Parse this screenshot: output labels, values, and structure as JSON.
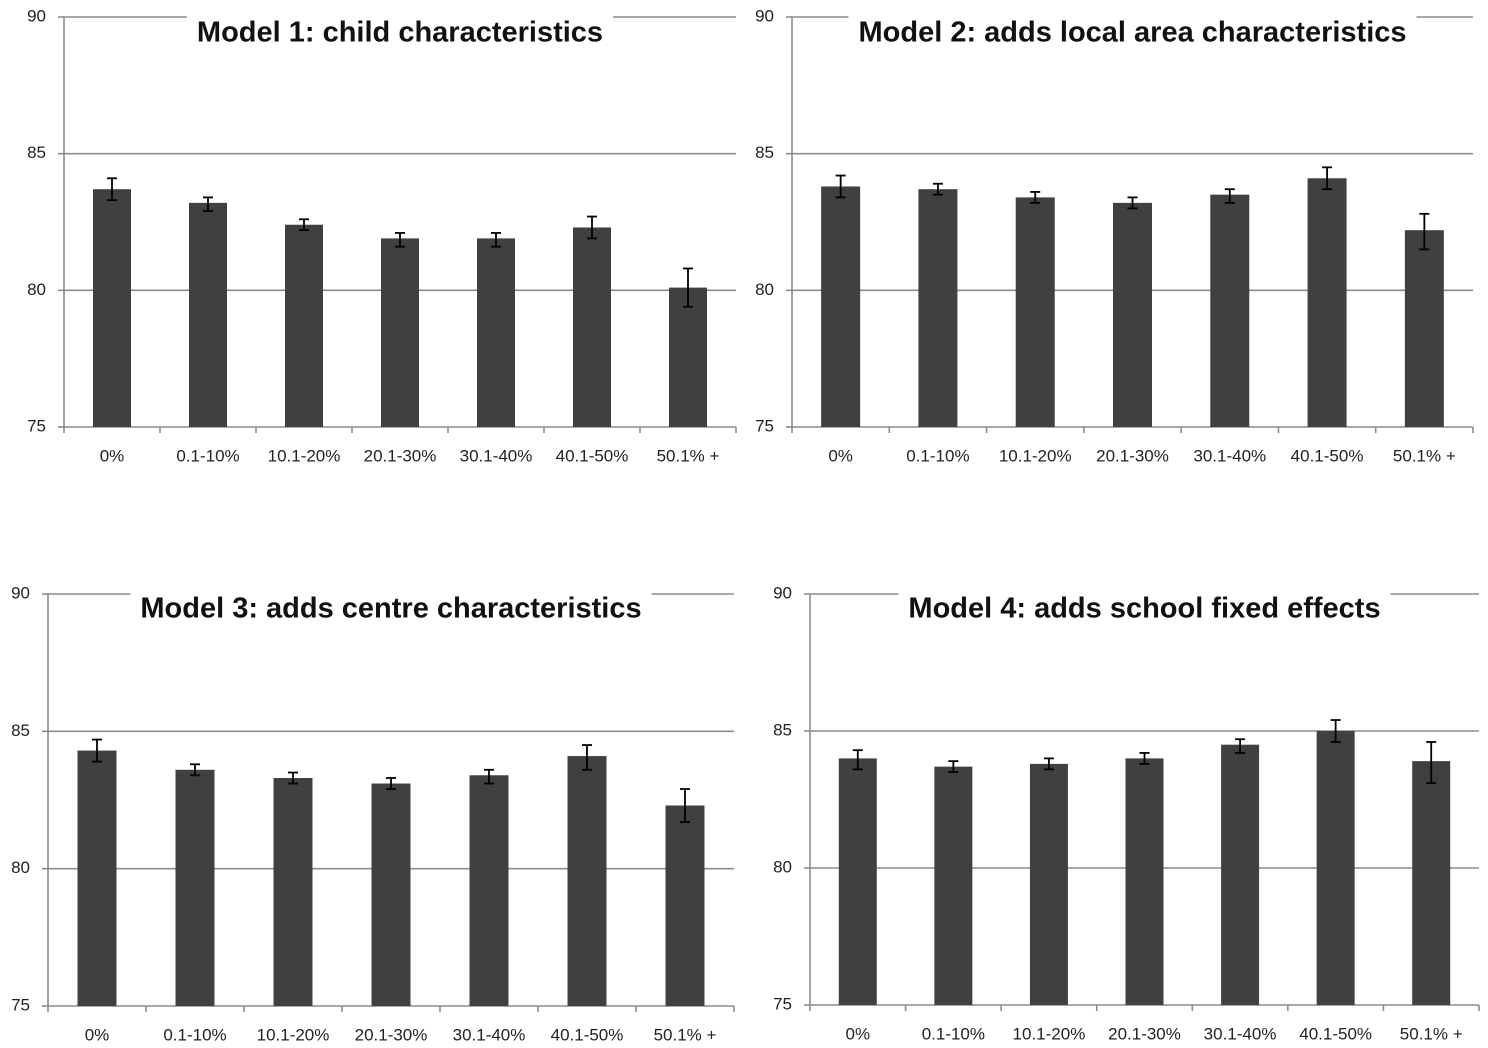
{
  "chart_data": [
    {
      "type": "bar",
      "title": "Model 1: child characteristics",
      "categories": [
        "0%",
        "0.1-10%",
        "10.1-20%",
        "20.1-30%",
        "30.1-40%",
        "40.1-50%",
        "50.1% +"
      ],
      "values": [
        83.7,
        83.2,
        82.4,
        81.9,
        81.9,
        82.3,
        80.1
      ],
      "error_low": [
        83.3,
        82.9,
        82.2,
        81.6,
        81.6,
        81.9,
        79.4
      ],
      "error_high": [
        84.1,
        83.4,
        82.6,
        82.1,
        82.1,
        82.7,
        80.8
      ],
      "ylim": [
        75,
        90
      ],
      "yticks": [
        75,
        80,
        85,
        90
      ],
      "grid": true
    },
    {
      "type": "bar",
      "title": "Model 2: adds local area characteristics",
      "categories": [
        "0%",
        "0.1-10%",
        "10.1-20%",
        "20.1-30%",
        "30.1-40%",
        "40.1-50%",
        "50.1% +"
      ],
      "values": [
        83.8,
        83.7,
        83.4,
        83.2,
        83.5,
        84.1,
        82.2
      ],
      "error_low": [
        83.4,
        83.5,
        83.2,
        83.0,
        83.2,
        83.7,
        81.5
      ],
      "error_high": [
        84.2,
        83.9,
        83.6,
        83.4,
        83.7,
        84.5,
        82.8
      ],
      "ylim": [
        75,
        90
      ],
      "yticks": [
        75,
        80,
        85,
        90
      ],
      "grid": true
    },
    {
      "type": "bar",
      "title": "Model 3: adds centre characteristics",
      "categories": [
        "0%",
        "0.1-10%",
        "10.1-20%",
        "20.1-30%",
        "30.1-40%",
        "40.1-50%",
        "50.1% +"
      ],
      "values": [
        84.3,
        83.6,
        83.3,
        83.1,
        83.4,
        84.1,
        82.3
      ],
      "error_low": [
        83.9,
        83.4,
        83.1,
        82.9,
        83.1,
        83.6,
        81.7
      ],
      "error_high": [
        84.7,
        83.8,
        83.5,
        83.3,
        83.6,
        84.5,
        82.9
      ],
      "ylim": [
        75,
        90
      ],
      "yticks": [
        75,
        80,
        85,
        90
      ],
      "grid": true
    },
    {
      "type": "bar",
      "title": "Model 4: adds school fixed effects",
      "categories": [
        "0%",
        "0.1-10%",
        "10.1-20%",
        "20.1-30%",
        "30.1-40%",
        "40.1-50%",
        "50.1% +"
      ],
      "values": [
        84.0,
        83.7,
        83.8,
        84.0,
        84.5,
        85.0,
        83.9
      ],
      "error_low": [
        83.6,
        83.5,
        83.6,
        83.8,
        84.2,
        84.6,
        83.1
      ],
      "error_high": [
        84.3,
        83.9,
        84.0,
        84.2,
        84.7,
        85.4,
        84.6
      ],
      "ylim": [
        75,
        90
      ],
      "yticks": [
        75,
        80,
        85,
        90
      ],
      "grid": true
    }
  ],
  "colors": {
    "bar": "#404040",
    "grid": "#8c8c8c",
    "error_bar": "#000000"
  }
}
